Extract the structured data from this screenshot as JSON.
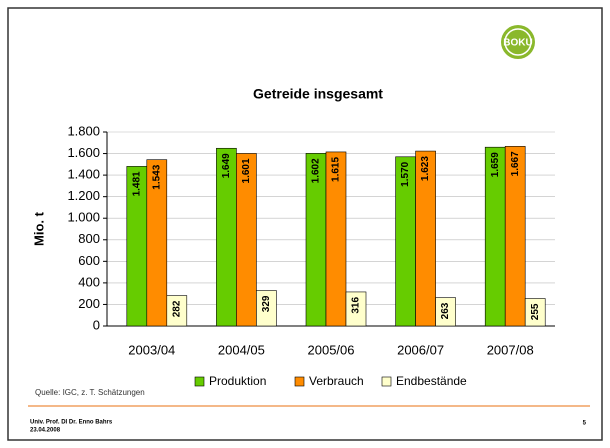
{
  "header": {
    "logo": "BOKU"
  },
  "chart_data": {
    "type": "bar",
    "title": "Getreide insgesamt",
    "ylabel": "Mio. t",
    "categories": [
      "2003/04",
      "2004/05",
      "2005/06",
      "2006/07",
      "2007/08"
    ],
    "series": [
      {
        "name": "Produktion",
        "color": "#66cc00",
        "values": [
          1481,
          1649,
          1602,
          1570,
          1659
        ],
        "value_labels": [
          "1.481",
          "1.649",
          "1.602",
          "1.570",
          "1.659"
        ]
      },
      {
        "name": "Verbrauch",
        "color": "#ff8c00",
        "values": [
          1543,
          1601,
          1615,
          1623,
          1667
        ],
        "value_labels": [
          "1.543",
          "1.601",
          "1.615",
          "1.623",
          "1.667"
        ]
      },
      {
        "name": "Endbestände",
        "color": "#ffffcc",
        "values": [
          282,
          329,
          316,
          263,
          255
        ]
      }
    ],
    "ylim": [
      0,
      1800
    ],
    "yticks": [
      0,
      200,
      400,
      600,
      800,
      {
        "value": 1000,
        "label": "1.000"
      },
      {
        "value": 1200,
        "label": "1.200"
      },
      {
        "value": 1400,
        "label": "1.400"
      },
      {
        "value": 1600,
        "label": "1.600"
      },
      {
        "value": 1800,
        "label": "1.800"
      }
    ],
    "grid": true,
    "legend": "bottom",
    "source": "Quelle: IGC, z. T. Schätzungen"
  },
  "footer": {
    "author": "Univ. Prof. DI Dr. Enno Bahrs",
    "date": "23.04.2008",
    "page": "5"
  }
}
